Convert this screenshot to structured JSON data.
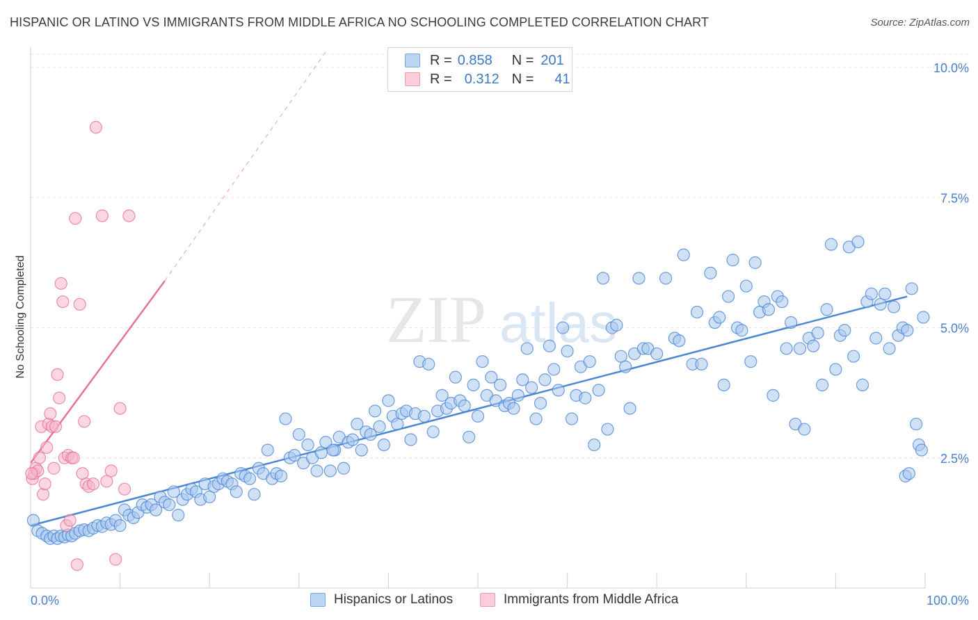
{
  "header": {
    "title": "HISPANIC OR LATINO VS IMMIGRANTS FROM MIDDLE AFRICA NO SCHOOLING COMPLETED CORRELATION CHART",
    "source": "Source: ZipAtlas.com"
  },
  "watermark": {
    "zip": "ZIP",
    "atlas": "atlas"
  },
  "legend": {
    "rows": [
      {
        "r_label": "R =",
        "r_value": "0.858",
        "n_label": "N =",
        "n_value": "201",
        "color": "#a9c8ef"
      },
      {
        "r_label": "R =",
        "r_value": "0.312",
        "n_label": "N =",
        "n_value": "41",
        "color": "#f5b6c8"
      }
    ]
  },
  "chart_data": {
    "type": "scatter",
    "ylabel": "No Schooling Completed",
    "xlim": [
      0,
      100
    ],
    "ylim": [
      0,
      10.5
    ],
    "x_ticks": [
      "0.0%",
      "100.0%"
    ],
    "y_ticks": [
      {
        "value": 2.5,
        "label": "2.5%"
      },
      {
        "value": 5.0,
        "label": "5.0%"
      },
      {
        "value": 7.5,
        "label": "7.5%"
      },
      {
        "value": 10.0,
        "label": "10.0%"
      }
    ],
    "grid": true,
    "legend_position": "bottom",
    "series": [
      {
        "name": "Hispanics or Latinos",
        "color": "#4a86d4",
        "fill": "#a9c8ef",
        "trend": {
          "x0": 0,
          "y0": 1.2,
          "x1": 98,
          "y1": 5.6,
          "dashed_to": null
        },
        "points": [
          [
            0.3,
            1.3
          ],
          [
            0.8,
            1.1
          ],
          [
            1.3,
            1.05
          ],
          [
            1.8,
            1.0
          ],
          [
            2.2,
            0.95
          ],
          [
            2.6,
            1.0
          ],
          [
            3.0,
            0.95
          ],
          [
            3.4,
            1.0
          ],
          [
            3.8,
            0.98
          ],
          [
            4.2,
            1.02
          ],
          [
            4.6,
            1.0
          ],
          [
            5.0,
            1.05
          ],
          [
            5.5,
            1.1
          ],
          [
            6.0,
            1.12
          ],
          [
            6.5,
            1.1
          ],
          [
            7.0,
            1.15
          ],
          [
            7.5,
            1.2
          ],
          [
            8.0,
            1.18
          ],
          [
            8.5,
            1.25
          ],
          [
            9.0,
            1.22
          ],
          [
            9.5,
            1.3
          ],
          [
            10.0,
            1.2
          ],
          [
            10.5,
            1.5
          ],
          [
            11.0,
            1.4
          ],
          [
            11.5,
            1.35
          ],
          [
            12.0,
            1.45
          ],
          [
            12.5,
            1.6
          ],
          [
            13.0,
            1.55
          ],
          [
            13.5,
            1.6
          ],
          [
            14.0,
            1.5
          ],
          [
            14.5,
            1.75
          ],
          [
            15.0,
            1.65
          ],
          [
            15.5,
            1.6
          ],
          [
            16.0,
            1.85
          ],
          [
            16.5,
            1.4
          ],
          [
            17.0,
            1.7
          ],
          [
            17.5,
            1.8
          ],
          [
            18.0,
            1.9
          ],
          [
            18.5,
            1.85
          ],
          [
            19.0,
            1.7
          ],
          [
            19.5,
            2.0
          ],
          [
            20.0,
            1.75
          ],
          [
            20.5,
            1.95
          ],
          [
            21.0,
            2.0
          ],
          [
            21.5,
            2.1
          ],
          [
            22.0,
            2.05
          ],
          [
            22.5,
            2.0
          ],
          [
            23.0,
            1.85
          ],
          [
            23.5,
            2.2
          ],
          [
            24.0,
            2.15
          ],
          [
            24.5,
            2.1
          ],
          [
            25.0,
            1.8
          ],
          [
            25.5,
            2.3
          ],
          [
            26.0,
            2.2
          ],
          [
            26.5,
            2.65
          ],
          [
            27.0,
            2.1
          ],
          [
            27.5,
            2.2
          ],
          [
            28.0,
            2.15
          ],
          [
            28.5,
            3.25
          ],
          [
            29.0,
            2.5
          ],
          [
            29.5,
            2.55
          ],
          [
            30.0,
            2.95
          ],
          [
            30.5,
            2.4
          ],
          [
            31.0,
            2.75
          ],
          [
            31.5,
            2.5
          ],
          [
            32.0,
            2.25
          ],
          [
            32.5,
            2.6
          ],
          [
            33.0,
            2.8
          ],
          [
            33.5,
            2.25
          ],
          [
            34.0,
            2.65
          ],
          [
            34.5,
            2.9
          ],
          [
            35.0,
            2.3
          ],
          [
            35.5,
            2.8
          ],
          [
            36.0,
            2.85
          ],
          [
            36.5,
            3.15
          ],
          [
            37.0,
            2.65
          ],
          [
            37.5,
            3.0
          ],
          [
            38.0,
            2.95
          ],
          [
            38.5,
            3.4
          ],
          [
            39.0,
            3.1
          ],
          [
            39.5,
            2.75
          ],
          [
            40.0,
            3.6
          ],
          [
            40.5,
            3.3
          ],
          [
            41.0,
            3.15
          ],
          [
            41.5,
            3.35
          ],
          [
            42.0,
            3.4
          ],
          [
            42.5,
            2.85
          ],
          [
            43.0,
            3.35
          ],
          [
            43.5,
            4.35
          ],
          [
            44.0,
            3.3
          ],
          [
            44.5,
            4.3
          ],
          [
            45.0,
            3.0
          ],
          [
            45.5,
            3.4
          ],
          [
            46.0,
            3.7
          ],
          [
            46.5,
            3.45
          ],
          [
            47.0,
            3.55
          ],
          [
            47.5,
            4.05
          ],
          [
            48.0,
            3.6
          ],
          [
            48.5,
            3.5
          ],
          [
            49.0,
            2.9
          ],
          [
            49.5,
            3.9
          ],
          [
            50.0,
            3.3
          ],
          [
            50.5,
            4.35
          ],
          [
            51.0,
            3.7
          ],
          [
            51.5,
            4.05
          ],
          [
            52.0,
            3.6
          ],
          [
            52.5,
            3.9
          ],
          [
            53.0,
            3.5
          ],
          [
            53.5,
            3.55
          ],
          [
            54.0,
            3.45
          ],
          [
            54.5,
            3.7
          ],
          [
            55.0,
            4.0
          ],
          [
            55.5,
            4.6
          ],
          [
            56.0,
            3.85
          ],
          [
            56.5,
            3.25
          ],
          [
            57.0,
            3.55
          ],
          [
            57.5,
            4.0
          ],
          [
            58.0,
            4.65
          ],
          [
            58.5,
            4.2
          ],
          [
            59.0,
            3.8
          ],
          [
            59.5,
            5.0
          ],
          [
            60.0,
            4.55
          ],
          [
            60.5,
            3.25
          ],
          [
            61.0,
            3.7
          ],
          [
            61.5,
            4.25
          ],
          [
            62.0,
            3.65
          ],
          [
            62.5,
            4.35
          ],
          [
            63.0,
            2.75
          ],
          [
            63.5,
            3.8
          ],
          [
            64.0,
            5.95
          ],
          [
            64.5,
            3.05
          ],
          [
            65.0,
            5.0
          ],
          [
            65.5,
            5.05
          ],
          [
            66.0,
            4.45
          ],
          [
            66.5,
            4.25
          ],
          [
            67.0,
            3.45
          ],
          [
            67.5,
            4.5
          ],
          [
            68.0,
            5.95
          ],
          [
            68.5,
            4.6
          ],
          [
            69.0,
            4.6
          ],
          [
            70.0,
            4.5
          ],
          [
            71.0,
            5.95
          ],
          [
            72.0,
            4.8
          ],
          [
            72.5,
            4.75
          ],
          [
            73.0,
            6.4
          ],
          [
            74.0,
            4.3
          ],
          [
            74.5,
            5.3
          ],
          [
            75.0,
            4.3
          ],
          [
            76.0,
            6.05
          ],
          [
            76.5,
            5.1
          ],
          [
            77.0,
            5.2
          ],
          [
            77.5,
            3.9
          ],
          [
            78.0,
            5.6
          ],
          [
            78.5,
            6.3
          ],
          [
            79.0,
            5.0
          ],
          [
            79.5,
            4.95
          ],
          [
            80.0,
            5.8
          ],
          [
            80.5,
            4.35
          ],
          [
            81.0,
            6.25
          ],
          [
            81.5,
            5.3
          ],
          [
            82.0,
            5.5
          ],
          [
            82.5,
            5.35
          ],
          [
            83.0,
            3.7
          ],
          [
            83.5,
            5.6
          ],
          [
            84.0,
            5.5
          ],
          [
            84.5,
            4.6
          ],
          [
            85.0,
            5.1
          ],
          [
            85.5,
            3.15
          ],
          [
            86.0,
            4.6
          ],
          [
            86.5,
            3.05
          ],
          [
            87.0,
            4.8
          ],
          [
            87.5,
            4.65
          ],
          [
            88.0,
            4.9
          ],
          [
            88.5,
            3.9
          ],
          [
            89.0,
            5.35
          ],
          [
            89.5,
            6.6
          ],
          [
            90.0,
            4.2
          ],
          [
            90.5,
            4.85
          ],
          [
            91.0,
            4.95
          ],
          [
            91.5,
            6.55
          ],
          [
            92.0,
            4.45
          ],
          [
            92.5,
            6.65
          ],
          [
            93.0,
            3.9
          ],
          [
            93.5,
            5.5
          ],
          [
            94.0,
            5.65
          ],
          [
            94.5,
            4.8
          ],
          [
            95.0,
            5.45
          ],
          [
            95.5,
            5.65
          ],
          [
            96.0,
            4.6
          ],
          [
            96.5,
            5.4
          ],
          [
            97.0,
            4.85
          ],
          [
            97.5,
            5.0
          ],
          [
            98.0,
            4.95
          ],
          [
            98.5,
            5.75
          ],
          [
            99.0,
            3.15
          ],
          [
            99.3,
            2.75
          ],
          [
            97.8,
            2.15
          ],
          [
            98.2,
            2.2
          ],
          [
            99.6,
            2.65
          ],
          [
            99.8,
            5.2
          ],
          [
            33.8,
            2.65
          ]
        ]
      },
      {
        "name": "Immigrants from Middle Africa",
        "color": "#e8719a",
        "fill": "#f5b6c8",
        "trend": {
          "x0": 0,
          "y0": 2.4,
          "x1": 15,
          "y1": 5.9,
          "dashed_to": [
            33,
            10.3
          ]
        },
        "points": [
          [
            0.2,
            2.1
          ],
          [
            0.4,
            2.2
          ],
          [
            0.6,
            2.3
          ],
          [
            0.8,
            2.25
          ],
          [
            1.0,
            2.5
          ],
          [
            1.2,
            3.1
          ],
          [
            1.4,
            1.8
          ],
          [
            1.6,
            2.0
          ],
          [
            1.8,
            2.7
          ],
          [
            2.0,
            3.15
          ],
          [
            2.2,
            3.35
          ],
          [
            2.4,
            3.1
          ],
          [
            2.6,
            2.3
          ],
          [
            2.8,
            3.1
          ],
          [
            3.0,
            4.1
          ],
          [
            3.2,
            3.65
          ],
          [
            3.4,
            5.85
          ],
          [
            3.6,
            5.5
          ],
          [
            3.8,
            2.5
          ],
          [
            4.0,
            1.2
          ],
          [
            4.2,
            2.55
          ],
          [
            4.4,
            1.3
          ],
          [
            4.6,
            2.5
          ],
          [
            4.8,
            2.5
          ],
          [
            5.0,
            7.1
          ],
          [
            5.2,
            0.45
          ],
          [
            5.5,
            5.45
          ],
          [
            5.8,
            2.2
          ],
          [
            6.0,
            3.2
          ],
          [
            6.2,
            2.0
          ],
          [
            6.5,
            1.95
          ],
          [
            7.0,
            2.0
          ],
          [
            7.3,
            8.85
          ],
          [
            8.0,
            7.15
          ],
          [
            8.5,
            2.05
          ],
          [
            9.0,
            2.25
          ],
          [
            9.5,
            0.55
          ],
          [
            10.0,
            3.45
          ],
          [
            10.5,
            1.9
          ],
          [
            11.0,
            7.15
          ],
          [
            0.1,
            2.2
          ]
        ]
      }
    ]
  },
  "bottom_legend": [
    {
      "label": "Hispanics or Latinos",
      "color": "#a9c8ef"
    },
    {
      "label": "Immigrants from Middle Africa",
      "color": "#f5b6c8"
    }
  ]
}
